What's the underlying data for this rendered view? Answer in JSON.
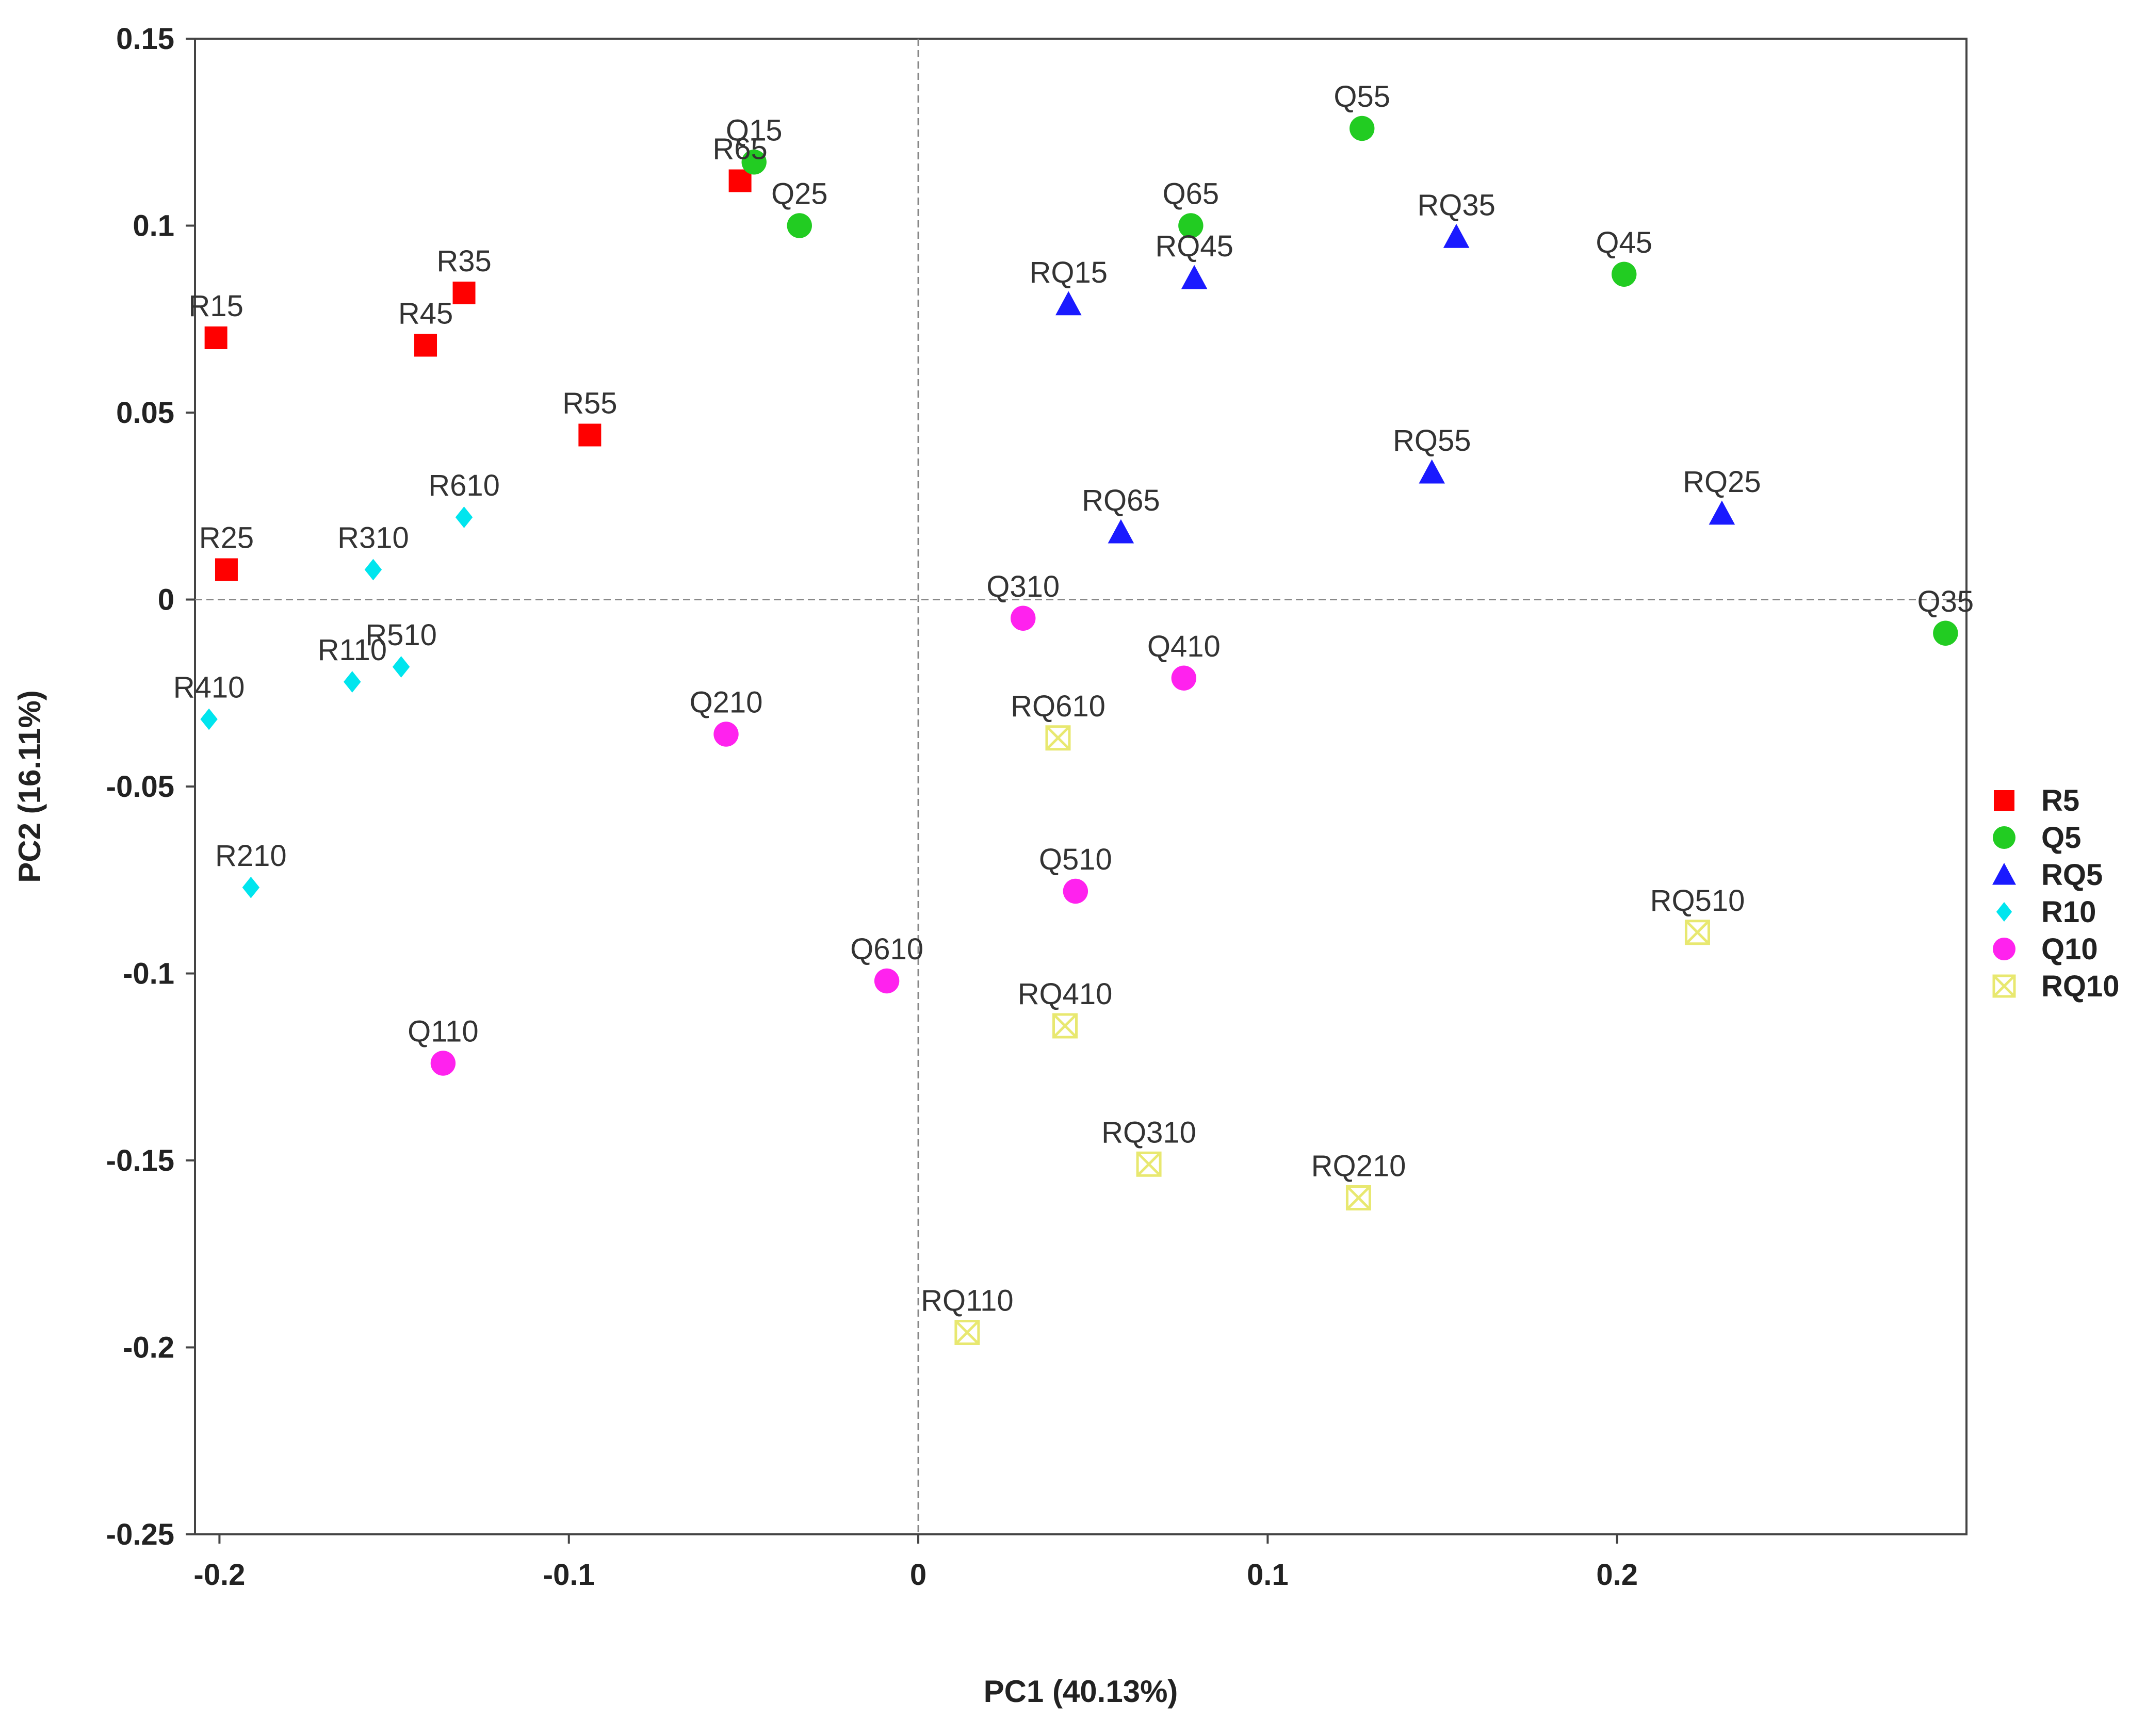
{
  "chart_data": {
    "type": "scatter",
    "title": "",
    "xlabel": "PC1 (40.13%)",
    "ylabel": "PC2 (16.11%)",
    "xlim": [
      -0.207,
      0.3
    ],
    "ylim": [
      -0.25,
      0.15
    ],
    "xticks": [
      -0.2,
      -0.1,
      0,
      0.1,
      0.2
    ],
    "xtick_labels": [
      "-0.2",
      "-0.1",
      "0",
      "0.1",
      "0.2"
    ],
    "yticks": [
      0.15,
      0.1,
      0.05,
      0,
      -0.05,
      -0.1,
      -0.15,
      -0.2,
      -0.25
    ],
    "ytick_labels": [
      "0.15",
      "0.1",
      "0.05",
      "0",
      "-0.05",
      "-0.1",
      "-0.15",
      "-0.2",
      "-0.25"
    ],
    "reference_lines": {
      "x": 0,
      "y": 0,
      "style": "dashed"
    },
    "grid": false,
    "legend_position": "right",
    "series": [
      {
        "name": "R5",
        "marker": "square",
        "color": "#ff0000",
        "points": [
          {
            "label": "R15",
            "x": -0.201,
            "y": 0.07
          },
          {
            "label": "R25",
            "x": -0.198,
            "y": 0.008
          },
          {
            "label": "R35",
            "x": -0.13,
            "y": 0.082
          },
          {
            "label": "R45",
            "x": -0.141,
            "y": 0.068
          },
          {
            "label": "R55",
            "x": -0.094,
            "y": 0.044
          },
          {
            "label": "R65",
            "x": -0.051,
            "y": 0.112
          }
        ]
      },
      {
        "name": "Q5",
        "marker": "circle",
        "color": "#22cc22",
        "points": [
          {
            "label": "Q15",
            "x": -0.047,
            "y": 0.117
          },
          {
            "label": "Q25",
            "x": -0.034,
            "y": 0.1
          },
          {
            "label": "Q35",
            "x": 0.294,
            "y": -0.009
          },
          {
            "label": "Q45",
            "x": 0.202,
            "y": 0.087
          },
          {
            "label": "Q55",
            "x": 0.127,
            "y": 0.126
          },
          {
            "label": "Q65",
            "x": 0.078,
            "y": 0.1
          }
        ]
      },
      {
        "name": "RQ5",
        "marker": "triangle",
        "color": "#1a1aff",
        "points": [
          {
            "label": "RQ15",
            "x": 0.043,
            "y": 0.079
          },
          {
            "label": "RQ25",
            "x": 0.23,
            "y": 0.023
          },
          {
            "label": "RQ35",
            "x": 0.154,
            "y": 0.097
          },
          {
            "label": "RQ45",
            "x": 0.079,
            "y": 0.086
          },
          {
            "label": "RQ55",
            "x": 0.147,
            "y": 0.034
          },
          {
            "label": "RQ65",
            "x": 0.058,
            "y": 0.018
          }
        ]
      },
      {
        "name": "R10",
        "marker": "diamond",
        "color": "#00e5ee",
        "points": [
          {
            "label": "R110",
            "x": -0.162,
            "y": -0.022
          },
          {
            "label": "R210",
            "x": -0.191,
            "y": -0.077
          },
          {
            "label": "R310",
            "x": -0.156,
            "y": 0.008
          },
          {
            "label": "R410",
            "x": -0.203,
            "y": -0.032
          },
          {
            "label": "R510",
            "x": -0.148,
            "y": -0.018
          },
          {
            "label": "R610",
            "x": -0.13,
            "y": 0.022
          }
        ]
      },
      {
        "name": "Q10",
        "marker": "circle",
        "color": "#ff22ee",
        "points": [
          {
            "label": "Q110",
            "x": -0.136,
            "y": -0.124
          },
          {
            "label": "Q210",
            "x": -0.055,
            "y": -0.036
          },
          {
            "label": "Q310",
            "x": 0.03,
            "y": -0.005
          },
          {
            "label": "Q410",
            "x": 0.076,
            "y": -0.021
          },
          {
            "label": "Q510",
            "x": 0.045,
            "y": -0.078
          },
          {
            "label": "Q610",
            "x": -0.009,
            "y": -0.102
          }
        ]
      },
      {
        "name": "RQ10",
        "marker": "boxed-x",
        "color": "#e8e870",
        "points": [
          {
            "label": "RQ110",
            "x": 0.014,
            "y": -0.196
          },
          {
            "label": "RQ210",
            "x": 0.126,
            "y": -0.16
          },
          {
            "label": "RQ310",
            "x": 0.066,
            "y": -0.151
          },
          {
            "label": "RQ410",
            "x": 0.042,
            "y": -0.114
          },
          {
            "label": "RQ510",
            "x": 0.223,
            "y": -0.089
          },
          {
            "label": "RQ610",
            "x": 0.04,
            "y": -0.037
          }
        ]
      }
    ]
  }
}
